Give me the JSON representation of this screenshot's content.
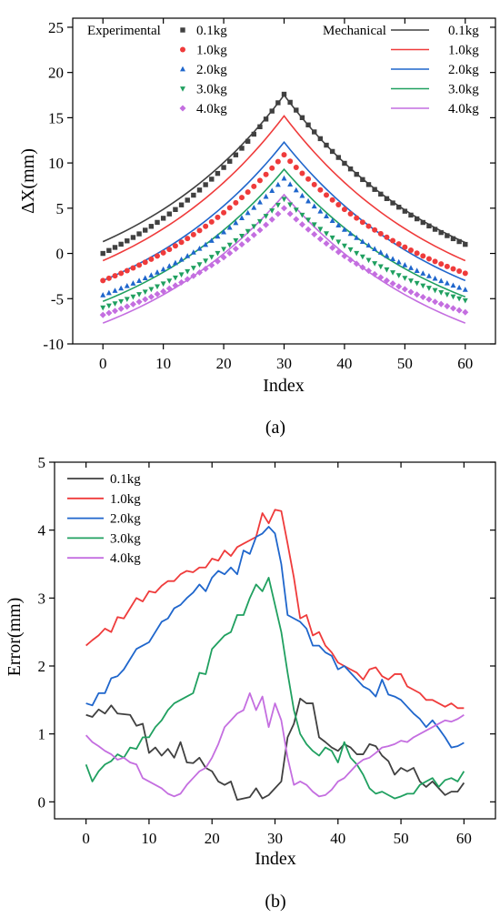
{
  "chart_data": [
    {
      "type": "scatter+line",
      "caption": "(a)",
      "xlabel": "Index",
      "ylabel": "ΔX(mm)",
      "xlim": [
        -5,
        65
      ],
      "ylim": [
        -10,
        26
      ],
      "xticks": [
        0,
        10,
        20,
        30,
        40,
        50,
        60
      ],
      "yticks": [
        -10,
        -5,
        0,
        5,
        10,
        15,
        20,
        25
      ],
      "legend_experimental_title": "Experimental",
      "legend_mechanical_title": "Mechanical",
      "peak_index": 30,
      "series": [
        {
          "name": "0.1kg",
          "color": "#404040",
          "marker": "square",
          "experimental": {
            "start": 0.0,
            "peak": 17.6,
            "end": 1.0
          },
          "mechanical": {
            "start": 1.3,
            "peak": 17.5,
            "end": 1.2
          }
        },
        {
          "name": "1.0kg",
          "color": "#ef3b3b",
          "marker": "circle",
          "experimental": {
            "start": -3.0,
            "peak": 10.9,
            "end": -2.2
          },
          "mechanical": {
            "start": -0.8,
            "peak": 15.2,
            "end": -0.8
          }
        },
        {
          "name": "2.0kg",
          "color": "#1f66cc",
          "marker": "triangle-up",
          "experimental": {
            "start": -4.6,
            "peak": 8.3,
            "end": -4.0
          },
          "mechanical": {
            "start": -3.0,
            "peak": 12.3,
            "end": -3.0
          }
        },
        {
          "name": "3.0kg",
          "color": "#20a060",
          "marker": "triangle-down",
          "experimental": {
            "start": -6.0,
            "peak": 6.0,
            "end": -5.2
          },
          "mechanical": {
            "start": -5.3,
            "peak": 9.3,
            "end": -4.8
          }
        },
        {
          "name": "4.0kg",
          "color": "#c46ee0",
          "marker": "diamond",
          "experimental": {
            "start": -6.8,
            "peak": 5.0,
            "end": -6.5
          },
          "mechanical": {
            "start": -7.7,
            "peak": 6.5,
            "end": -7.7
          }
        }
      ]
    },
    {
      "type": "line",
      "caption": "(b)",
      "xlabel": "Index",
      "ylabel": "Error(mm)",
      "xlim": [
        -5,
        65
      ],
      "ylim": [
        -0.25,
        5
      ],
      "xticks": [
        0,
        10,
        20,
        30,
        40,
        50,
        60
      ],
      "yticks": [
        0,
        1,
        2,
        3,
        4,
        5
      ],
      "series": [
        {
          "name": "0.1kg",
          "color": "#404040",
          "values": [
            1.28,
            1.25,
            1.36,
            1.3,
            1.42,
            1.3,
            1.29,
            1.28,
            1.12,
            1.15,
            0.72,
            0.8,
            0.68,
            0.78,
            0.65,
            0.88,
            0.58,
            0.57,
            0.65,
            0.5,
            0.45,
            0.3,
            0.25,
            0.3,
            0.03,
            0.05,
            0.07,
            0.2,
            0.05,
            0.1,
            0.2,
            0.3,
            0.95,
            1.15,
            1.52,
            1.45,
            1.45,
            0.95,
            0.88,
            0.8,
            0.75,
            0.85,
            0.8,
            0.7,
            0.7,
            0.85,
            0.82,
            0.68,
            0.6,
            0.4,
            0.5,
            0.45,
            0.5,
            0.3,
            0.22,
            0.3,
            0.2,
            0.1,
            0.15,
            0.15,
            0.28
          ]
        },
        {
          "name": "1.0kg",
          "color": "#ef3b3b",
          "values": [
            2.3,
            2.38,
            2.45,
            2.55,
            2.5,
            2.72,
            2.7,
            2.85,
            3.0,
            2.95,
            3.1,
            3.08,
            3.18,
            3.25,
            3.25,
            3.35,
            3.4,
            3.38,
            3.45,
            3.45,
            3.58,
            3.55,
            3.7,
            3.62,
            3.75,
            3.8,
            3.85,
            3.9,
            4.25,
            4.1,
            4.3,
            4.28,
            3.8,
            3.3,
            2.7,
            2.75,
            2.45,
            2.5,
            2.3,
            2.2,
            2.05,
            2.0,
            1.95,
            1.9,
            1.8,
            1.95,
            1.98,
            1.85,
            1.8,
            1.88,
            1.88,
            1.7,
            1.65,
            1.6,
            1.5,
            1.5,
            1.45,
            1.4,
            1.45,
            1.38,
            1.38
          ]
        },
        {
          "name": "2.0kg",
          "color": "#1f66cc",
          "values": [
            1.45,
            1.42,
            1.6,
            1.6,
            1.82,
            1.85,
            1.95,
            2.1,
            2.25,
            2.3,
            2.35,
            2.5,
            2.65,
            2.7,
            2.85,
            2.9,
            3.0,
            3.08,
            3.2,
            3.1,
            3.3,
            3.4,
            3.35,
            3.45,
            3.35,
            3.7,
            3.65,
            3.9,
            3.95,
            4.05,
            3.95,
            3.5,
            2.75,
            2.7,
            2.65,
            2.55,
            2.3,
            2.3,
            2.2,
            2.15,
            1.95,
            2.0,
            1.9,
            1.8,
            1.7,
            1.65,
            1.55,
            1.8,
            1.58,
            1.55,
            1.5,
            1.4,
            1.3,
            1.22,
            1.1,
            1.2,
            1.08,
            0.95,
            0.8,
            0.82,
            0.87
          ]
        },
        {
          "name": "3.0kg",
          "color": "#20a060",
          "values": [
            0.55,
            0.3,
            0.45,
            0.55,
            0.6,
            0.7,
            0.65,
            0.8,
            0.78,
            0.95,
            0.95,
            1.1,
            1.2,
            1.35,
            1.45,
            1.5,
            1.55,
            1.6,
            1.9,
            1.88,
            2.25,
            2.35,
            2.45,
            2.5,
            2.75,
            2.75,
            3.0,
            3.2,
            3.1,
            3.3,
            2.9,
            2.5,
            1.9,
            1.35,
            1.0,
            0.85,
            0.75,
            0.68,
            0.8,
            0.75,
            0.58,
            0.88,
            0.65,
            0.55,
            0.4,
            0.2,
            0.12,
            0.15,
            0.1,
            0.05,
            0.08,
            0.12,
            0.12,
            0.25,
            0.3,
            0.35,
            0.22,
            0.32,
            0.35,
            0.3,
            0.45
          ]
        },
        {
          "name": "4.0kg",
          "color": "#c46ee0",
          "values": [
            0.98,
            0.88,
            0.82,
            0.75,
            0.7,
            0.62,
            0.65,
            0.58,
            0.55,
            0.35,
            0.3,
            0.25,
            0.2,
            0.12,
            0.08,
            0.12,
            0.25,
            0.35,
            0.45,
            0.5,
            0.65,
            0.85,
            1.1,
            1.2,
            1.3,
            1.35,
            1.6,
            1.35,
            1.55,
            1.1,
            1.45,
            1.2,
            0.65,
            0.25,
            0.3,
            0.25,
            0.15,
            0.08,
            0.1,
            0.18,
            0.3,
            0.35,
            0.45,
            0.55,
            0.62,
            0.65,
            0.72,
            0.8,
            0.82,
            0.85,
            0.9,
            0.88,
            0.95,
            1.0,
            1.05,
            1.1,
            1.15,
            1.2,
            1.18,
            1.22,
            1.28
          ]
        }
      ]
    }
  ]
}
